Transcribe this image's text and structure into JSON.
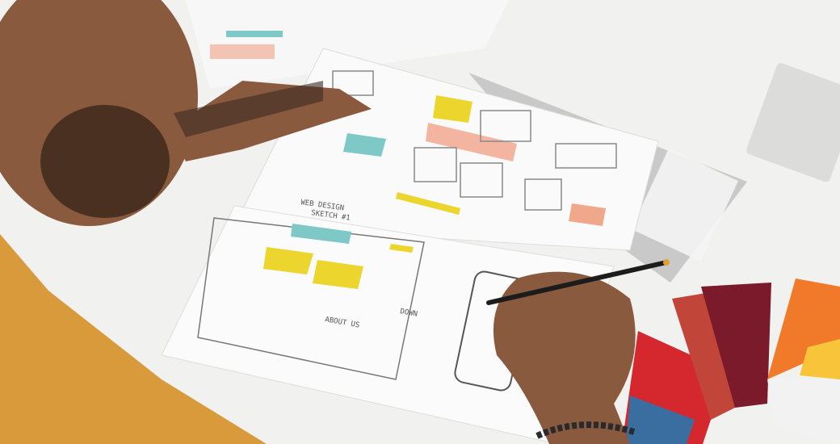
{
  "sketch": {
    "title_line1": "WEB DESIGN",
    "title_line2": "SKETCH #1",
    "about_label": "ABOUT US",
    "scroll_label": "DOWN"
  },
  "colors": {
    "desk": "#f1f1ef",
    "shirt": "#d99a3c",
    "skin": "#8a5a3e",
    "sticky_yellow": "#ecd52c",
    "teal": "#7ec8c8",
    "salmon": "#f0a88a",
    "swatch_red": "#d4282e",
    "swatch_orange": "#f07a2a",
    "swatch_maroon": "#7a1a2a"
  }
}
